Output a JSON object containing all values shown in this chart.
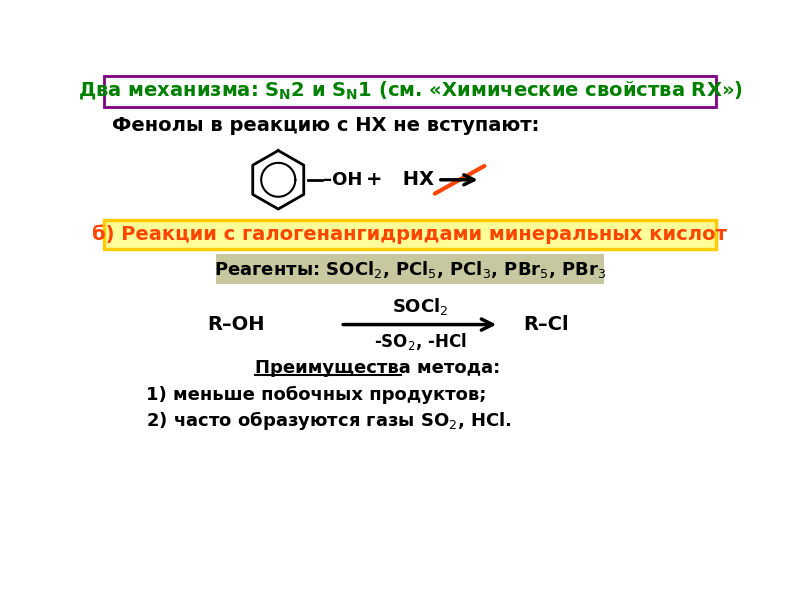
{
  "title_color": "#008000",
  "title_border_color": "#800080",
  "bg_color": "#ffffff",
  "line1": "Фенолы в реакцию с НХ не вступают:",
  "section_b_text": "б) Реакции с галогенангидридами минеральных кислот",
  "section_b_color": "#ff4500",
  "reagents_bg": "#c8c8a0",
  "advantages_title": "Преимущества метода:",
  "advantage1": "1) меньше побочных продуктов;",
  "advantage2": "2) часто образуются газы SO₂, HCl."
}
